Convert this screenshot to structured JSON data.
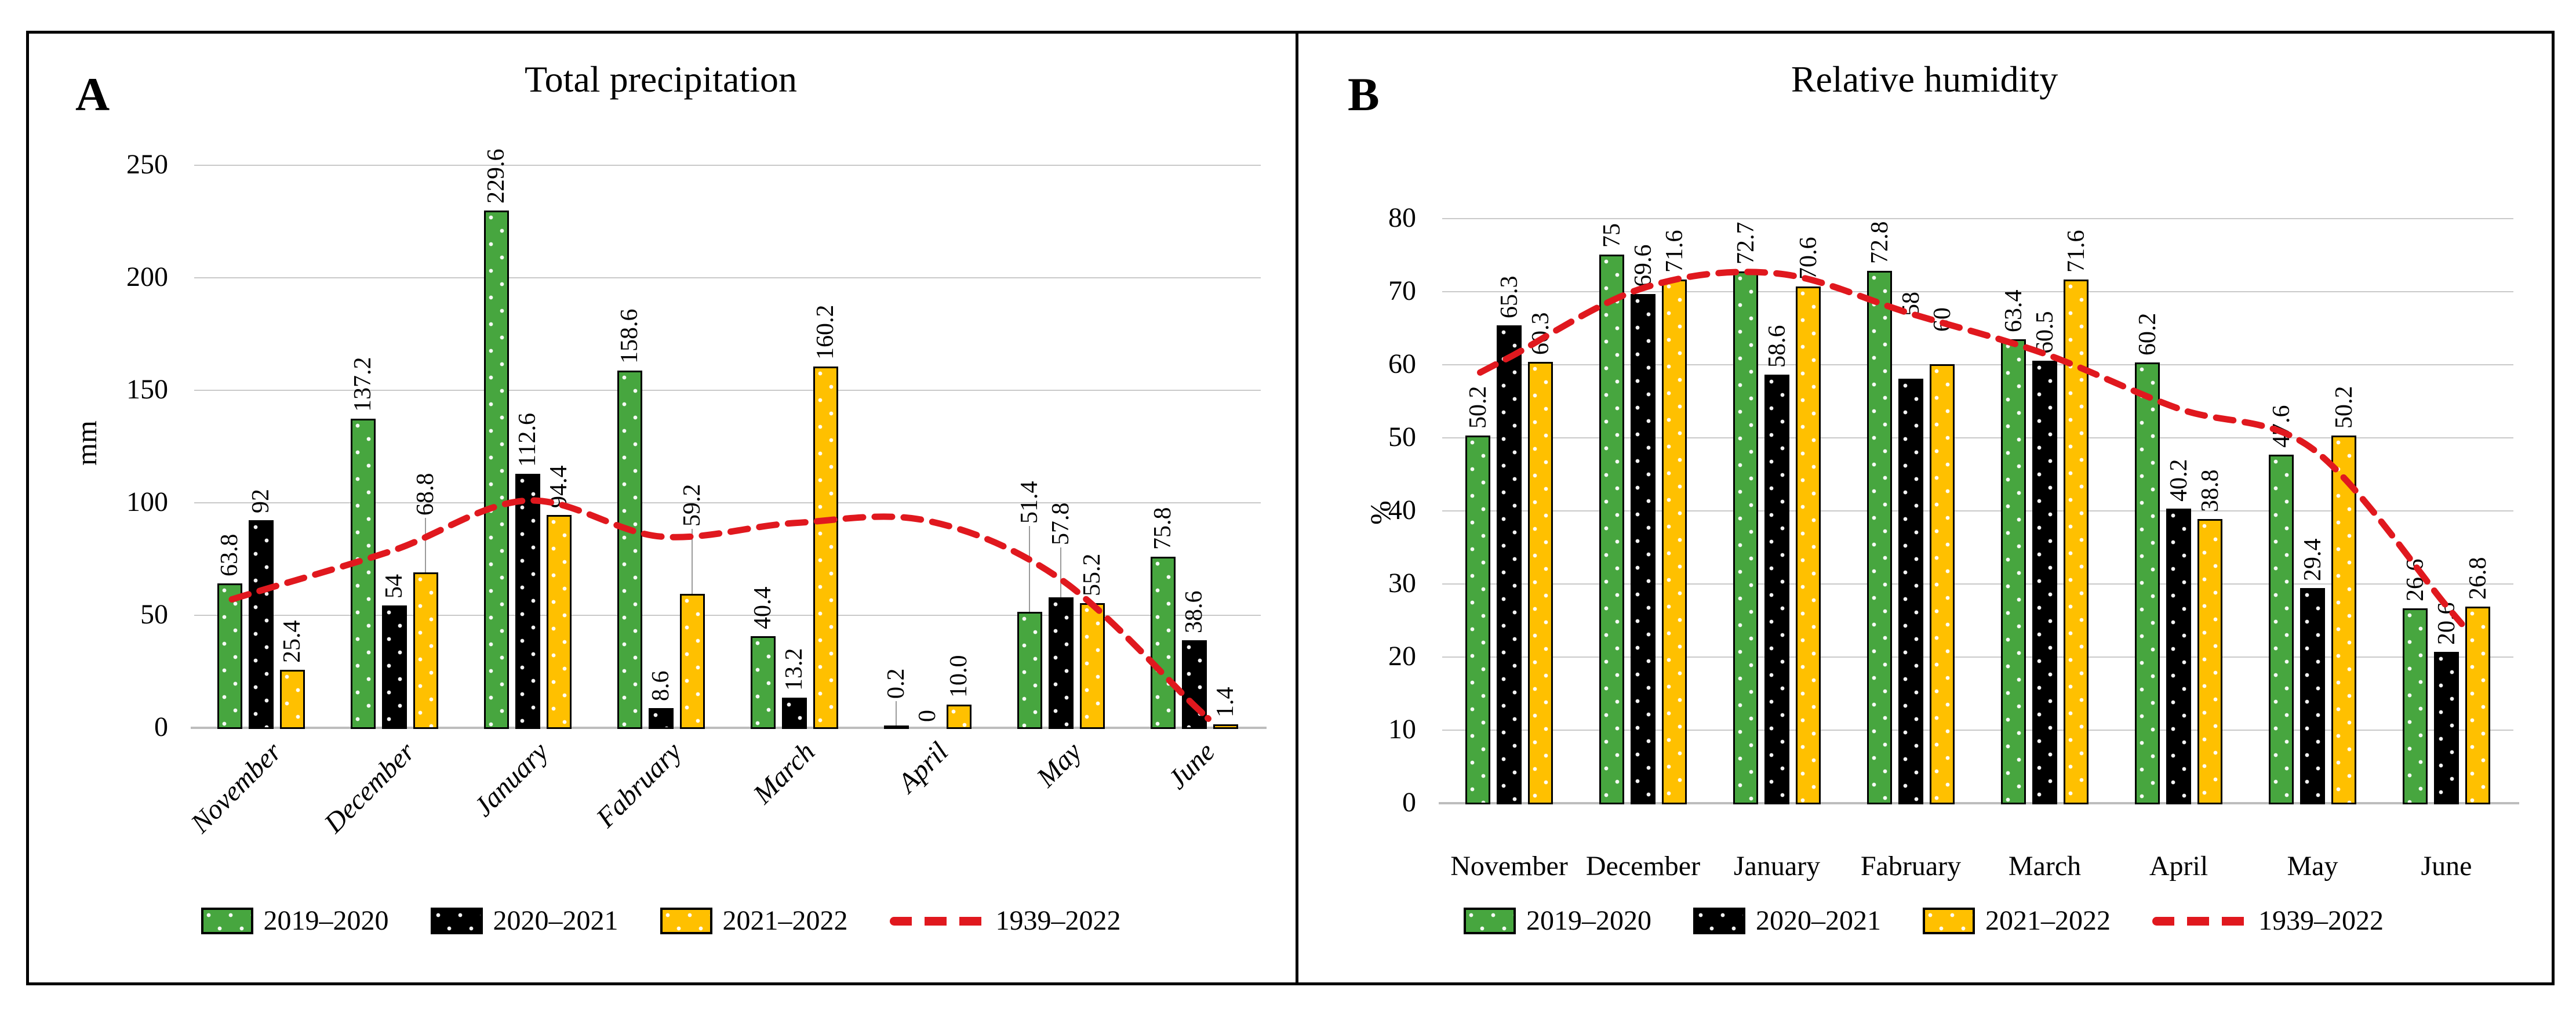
{
  "figure": {
    "panel_letters": [
      "A",
      "B"
    ]
  },
  "chart_data": [
    {
      "panel_letter": "A",
      "type": "bar",
      "subtype": "grouped-bar-with-smoothed-dashed-line",
      "title": "Total precipitation",
      "ylabel": "mm",
      "ylim": [
        0,
        250
      ],
      "ytick_step": 50,
      "yticks": [
        "0",
        "50",
        "100",
        "150",
        "200",
        "250"
      ],
      "grid": "horizontal",
      "legend_position": "bottom",
      "categories": [
        "November",
        "December",
        "January",
        "Fabruary",
        "March",
        "April",
        "May",
        "June"
      ],
      "series": [
        {
          "name": "2019–2020",
          "color": "#47A63F",
          "values": [
            63.8,
            137.2,
            229.6,
            158.6,
            40.4,
            0.2,
            51.4,
            75.8
          ],
          "labels": [
            "63.8",
            "137.2",
            "229.6",
            "158.6",
            "40.4",
            "0.2",
            "51.4",
            "75.8"
          ]
        },
        {
          "name": "2020–2021",
          "color": "#000000",
          "values": [
            92,
            54,
            112.6,
            8.6,
            13.2,
            0,
            57.8,
            38.6
          ],
          "labels": [
            "92",
            "54",
            "112.6",
            "8.6",
            "13.2",
            "0",
            "57.8",
            "38.6"
          ]
        },
        {
          "name": "2021–2022",
          "color": "#FFC000",
          "values": [
            25.4,
            68.8,
            94.4,
            59.2,
            160.2,
            10.0,
            55.2,
            1.4
          ],
          "labels": [
            "25.4",
            "68.8",
            "94.4",
            "59.2",
            "160.2",
            "10.0",
            "55.2",
            "1.4"
          ]
        }
      ],
      "line_series": {
        "name": "1939–2022",
        "color": "#E0181E",
        "style": "dashed",
        "values": [
          61,
          79,
          101,
          85,
          91,
          92,
          66,
          10
        ]
      }
    },
    {
      "panel_letter": "B",
      "type": "bar",
      "subtype": "grouped-bar-with-smoothed-dashed-line",
      "title": "Relative humidity",
      "ylabel": "%",
      "ylim": [
        0,
        80
      ],
      "ytick_step": 10,
      "yticks": [
        "0",
        "10",
        "20",
        "30",
        "40",
        "50",
        "60",
        "70",
        "80"
      ],
      "grid": "horizontal",
      "legend_position": "bottom",
      "categories": [
        "November",
        "December",
        "January",
        "Fabruary",
        "March",
        "April",
        "May",
        "June"
      ],
      "series": [
        {
          "name": "2019–2020",
          "color": "#47A63F",
          "values": [
            50.2,
            75,
            72.7,
            72.8,
            63.4,
            60.2,
            47.6,
            26.6
          ],
          "labels": [
            "50.2",
            "75",
            "72.7",
            "72.8",
            "63.4",
            "60.2",
            "47.6",
            "26.6"
          ]
        },
        {
          "name": "2020–2021",
          "color": "#000000",
          "values": [
            65.3,
            69.6,
            58.6,
            58,
            60.5,
            40.2,
            29.4,
            20.6
          ],
          "labels": [
            "65.3",
            "69.6",
            "58.6",
            "58",
            "60.5",
            "40.2",
            "29.4",
            "20.6"
          ]
        },
        {
          "name": "2021–2022",
          "color": "#FFC000",
          "values": [
            60.3,
            71.6,
            70.6,
            60,
            71.6,
            38.8,
            50.2,
            26.8
          ],
          "labels": [
            "60.3",
            "71.6",
            "70.6",
            "60",
            "71.6",
            "38.8",
            "50.2",
            "26.8"
          ]
        }
      ],
      "line_series": {
        "name": "1939–2022",
        "color": "#E0181E",
        "style": "dashed",
        "values": [
          61,
          70.5,
          72.5,
          67,
          61.5,
          54,
          48.5,
          27
        ]
      }
    }
  ]
}
